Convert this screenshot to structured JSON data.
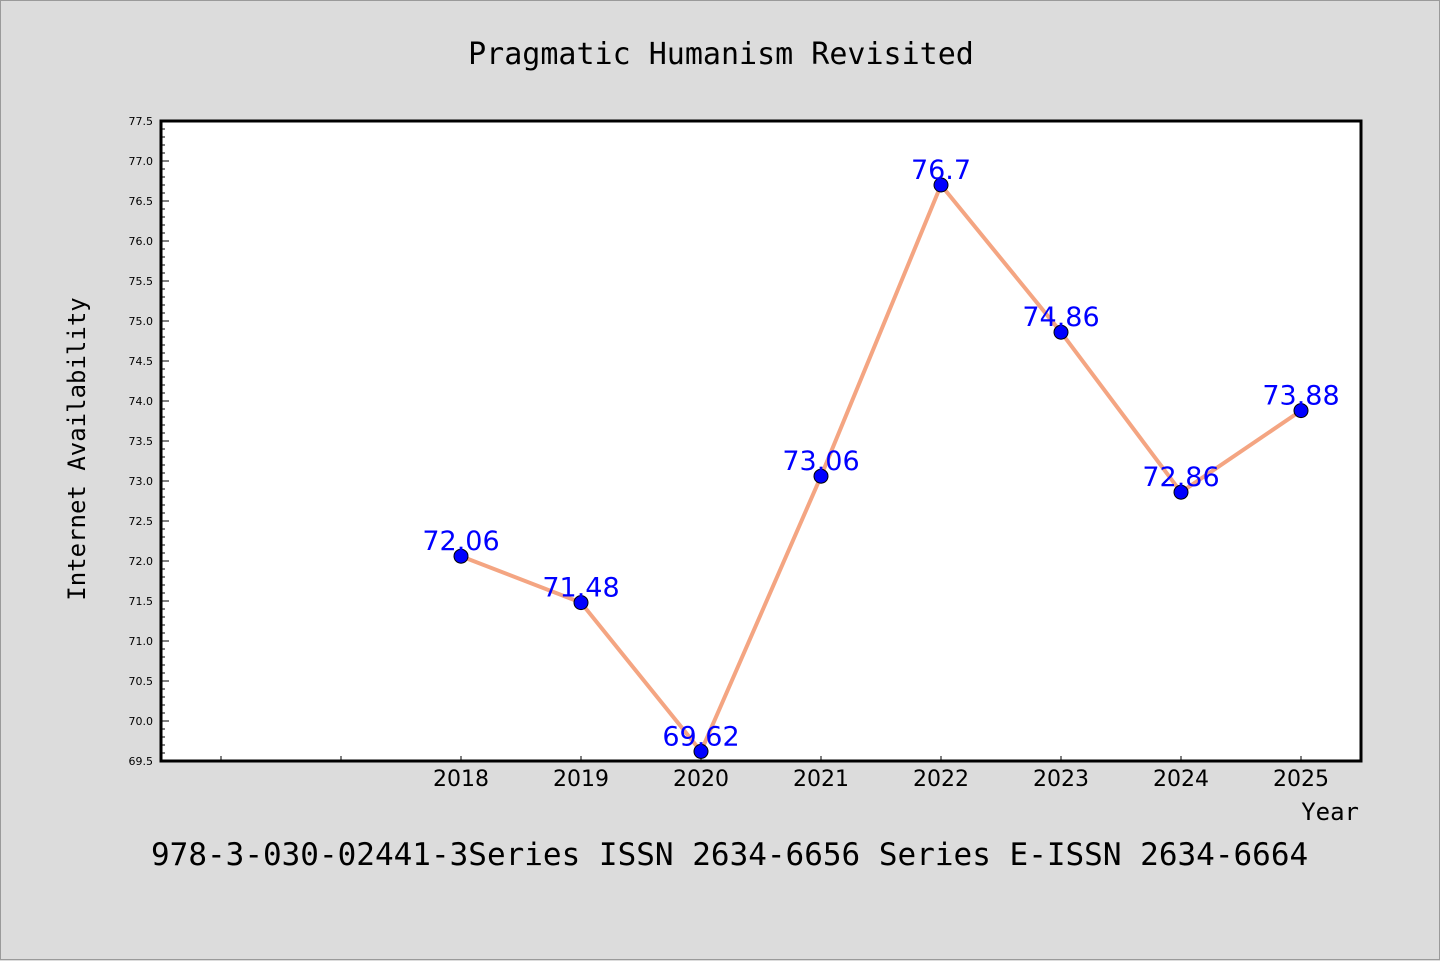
{
  "chart_data": {
    "type": "line",
    "title": "Pragmatic Humanism Revisited",
    "xlabel": "Year",
    "ylabel": "Internet Availability",
    "categories": [
      "2018",
      "2019",
      "2020",
      "2021",
      "2022",
      "2023",
      "2024",
      "2025"
    ],
    "series": [
      {
        "values": [
          72.06,
          71.48,
          69.62,
          73.06,
          76.7,
          74.86,
          72.86,
          73.88
        ]
      }
    ],
    "data_labels": [
      "72.06",
      "71.48",
      "69.62",
      "73.06",
      "76.7",
      "74.86",
      "72.86",
      "73.88"
    ],
    "ylim": [
      69.5,
      77.5
    ],
    "ytick_labels": [
      "69.5",
      "70.0",
      "70.5",
      "71.0",
      "71.5",
      "72.0",
      "72.5",
      "73.0",
      "73.5",
      "74.0",
      "74.5",
      "75.0",
      "75.5",
      "76.0",
      "76.5",
      "77.0",
      "77.5"
    ],
    "grid": false,
    "line_color": "#f4a582",
    "marker_color": "#0000ff",
    "label_color": "#0000ff"
  },
  "caption": "978-3-030-02441-3Series ISSN 2634-6656 Series E-ISSN 2634-6664"
}
